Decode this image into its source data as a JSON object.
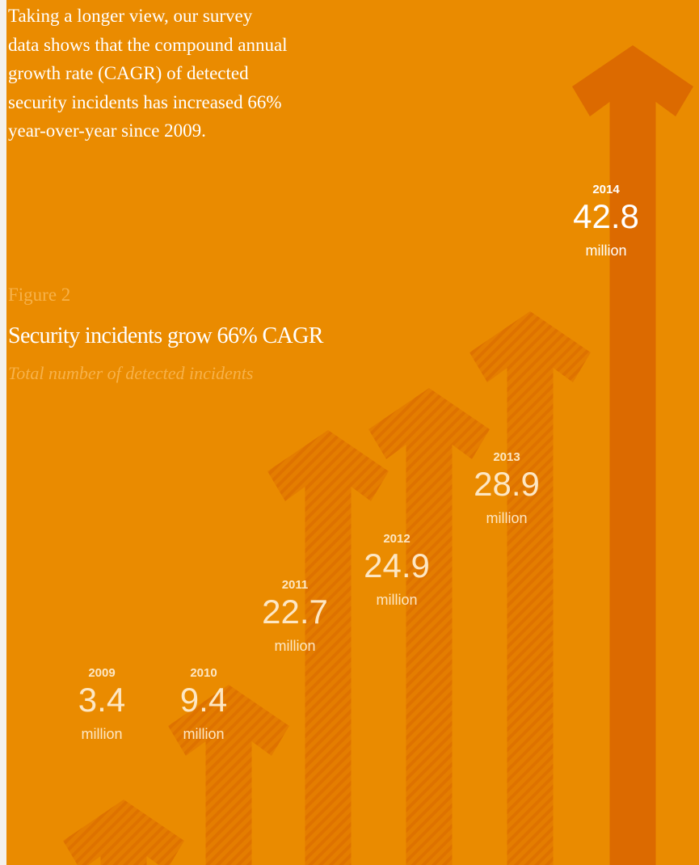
{
  "intro": {
    "lines": [
      "Taking a longer view, our survey",
      "data shows that the compound annual",
      "growth rate (CAGR) of detected",
      "security incidents has increased 66%",
      "year-over-year since 2009."
    ]
  },
  "figure": {
    "label": "Figure 2",
    "title": "Security incidents grow 66% CAGR",
    "subtitle": "Total number of detected incidents"
  },
  "colors": {
    "background": "#ea8b00",
    "arrow_faint": "#e47d00",
    "arrow_main": "#dc6a00",
    "label_main": "#ffffff",
    "label_faint": "#fde7c4"
  },
  "chart_data": {
    "type": "bar",
    "categories": [
      "2009",
      "2010",
      "2011",
      "2012",
      "2013",
      "2014"
    ],
    "values": [
      3.4,
      9.4,
      22.7,
      24.9,
      28.9,
      42.8
    ],
    "value_labels": [
      "3.4",
      "9.4",
      "22.7",
      "24.9",
      "28.9",
      "42.8"
    ],
    "unit": "million",
    "title": "Security incidents grow 66% CAGR",
    "subtitle": "Total number of detected incidents",
    "ylim": [
      0,
      45
    ],
    "grid": false,
    "legend": "none"
  }
}
